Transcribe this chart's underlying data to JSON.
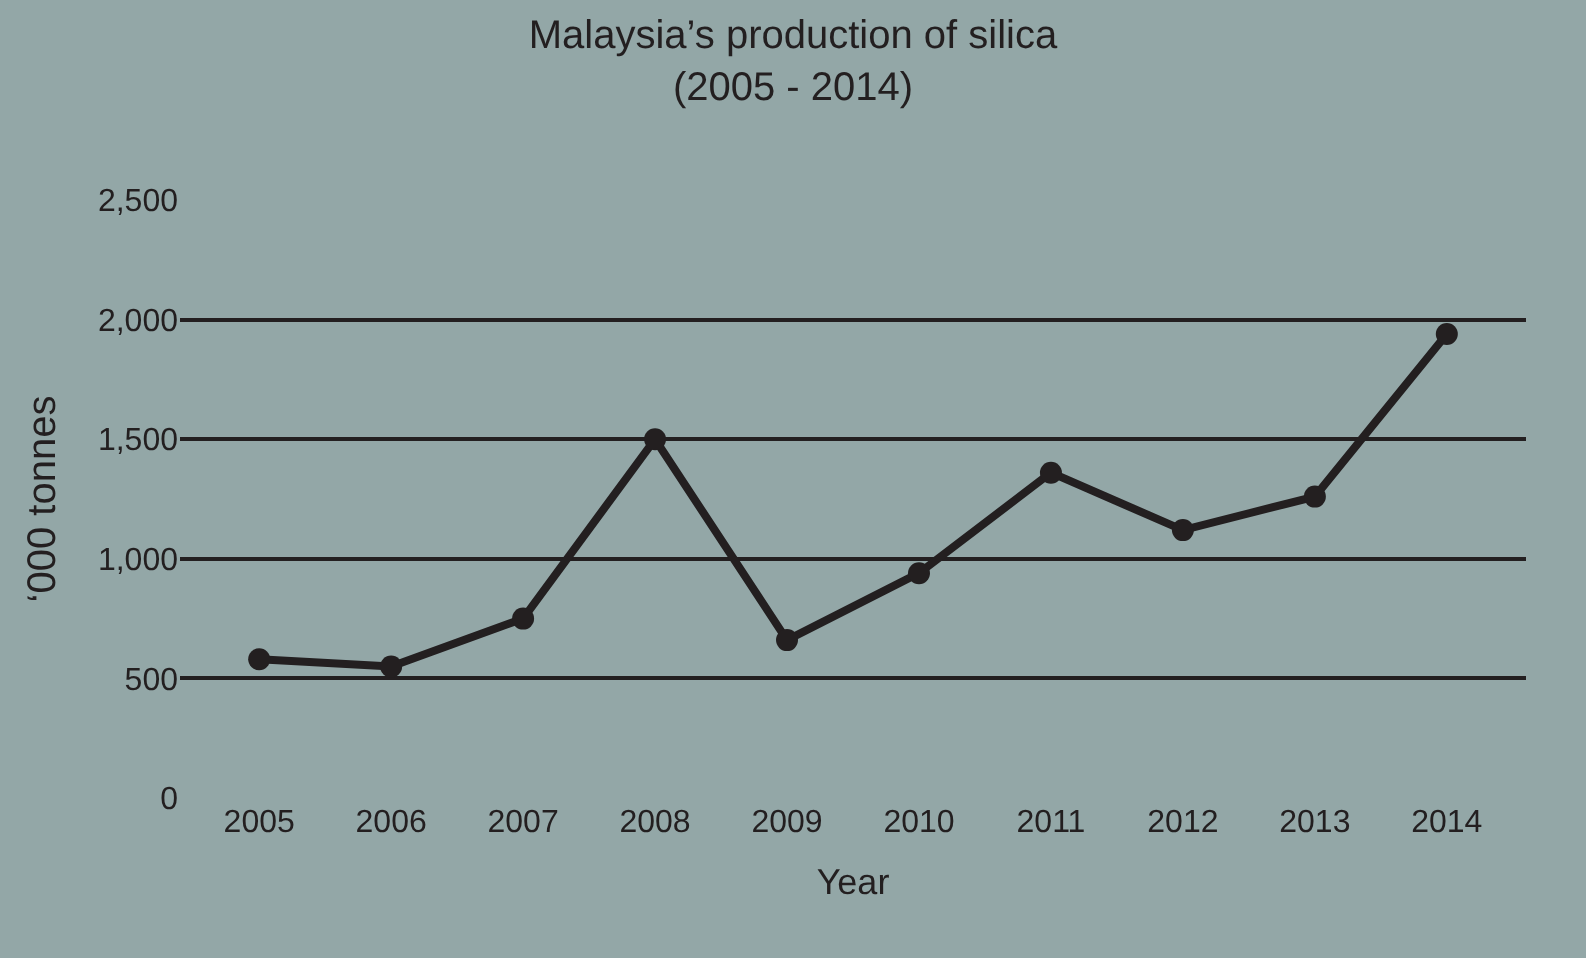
{
  "chart_data": {
    "type": "line",
    "title": "Malaysia’s production of silica\n(2005 - 2014)",
    "xlabel": "Year",
    "ylabel": "‘000 tonnes",
    "categories": [
      "2005",
      "2006",
      "2007",
      "2008",
      "2009",
      "2010",
      "2011",
      "2012",
      "2013",
      "2014"
    ],
    "series": [
      {
        "color": "#231f20",
        "values": [
          580,
          550,
          750,
          1500,
          660,
          940,
          1360,
          1120,
          1260,
          1940
        ]
      }
    ],
    "ylim": [
      0,
      2500
    ],
    "yticks": [
      {
        "value": 0,
        "label": "0"
      },
      {
        "value": 500,
        "label": "500"
      },
      {
        "value": 1000,
        "label": "1,000"
      },
      {
        "value": 1500,
        "label": "1,500"
      },
      {
        "value": 2000,
        "label": "2,000"
      },
      {
        "value": 2500,
        "label": "2,500"
      }
    ],
    "grid": "y",
    "legend": false,
    "marker": "circle",
    "line_style": "solid"
  }
}
